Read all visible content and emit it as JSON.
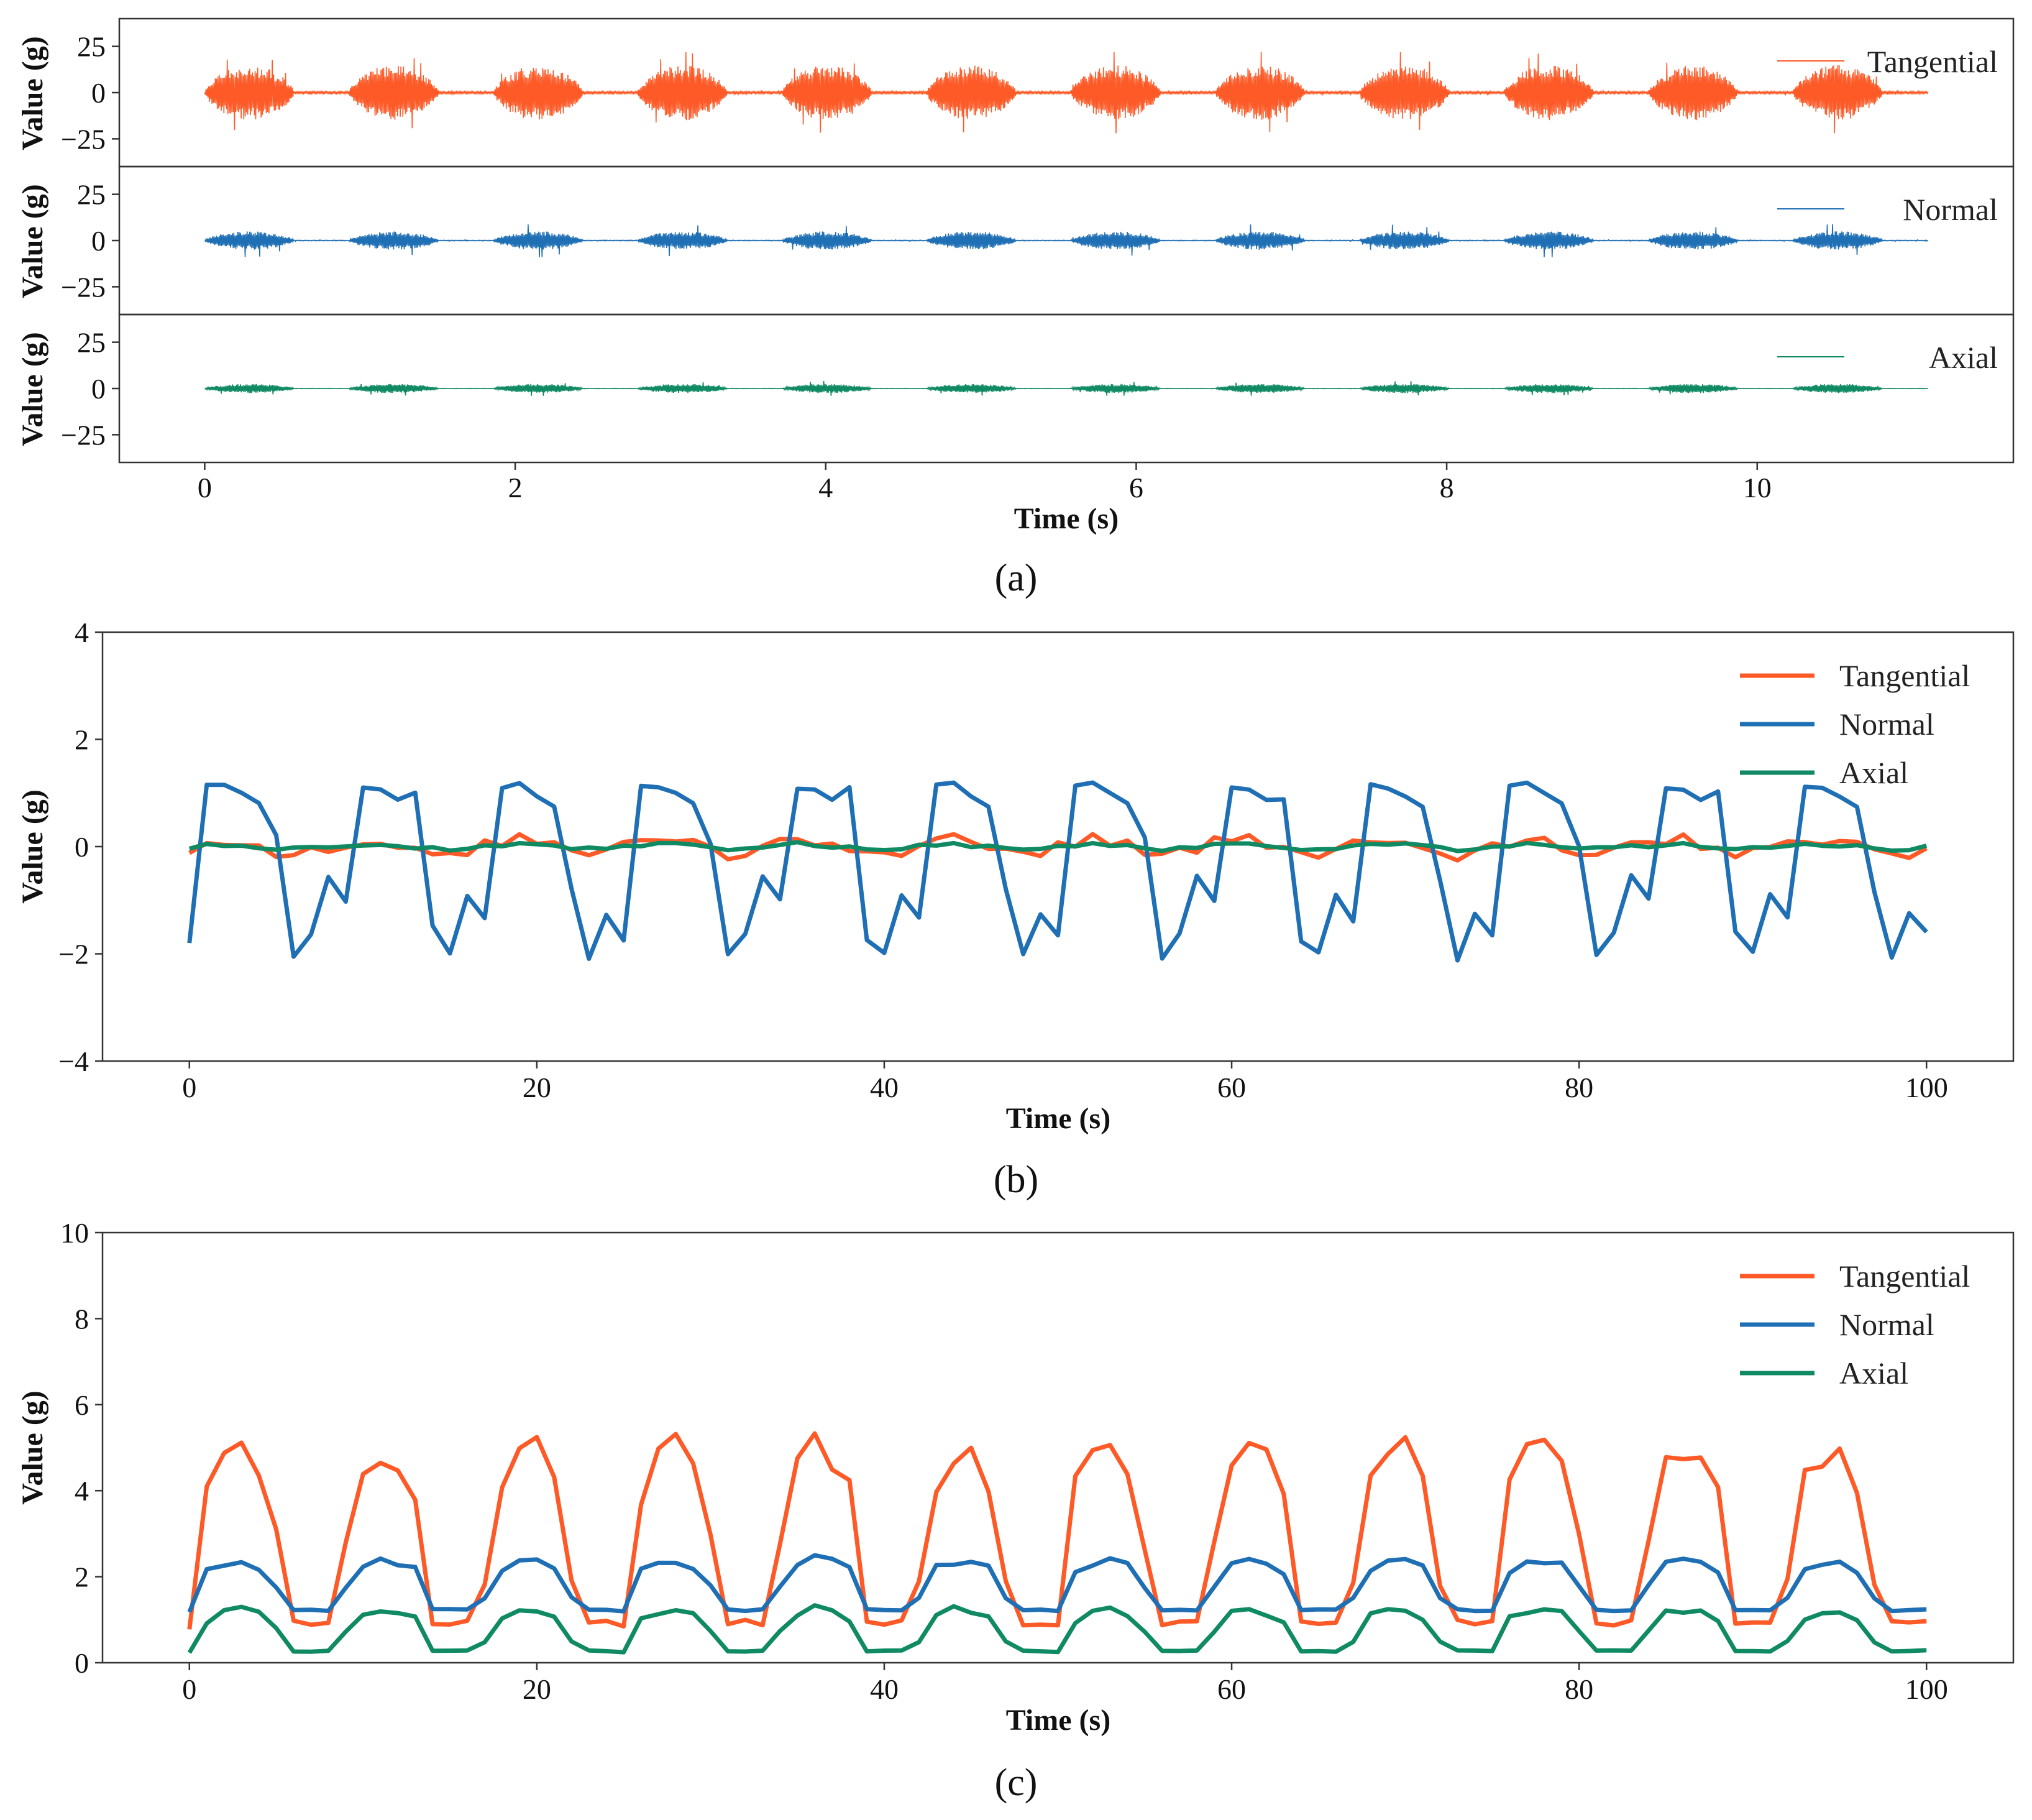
{
  "figure": {
    "panel_labels": [
      "(a)",
      "(b)",
      "(c)"
    ]
  },
  "colors": {
    "tangential": "#fd5a27",
    "normal": "#1f6fb5",
    "axial": "#0f8a63",
    "frame": "#333333"
  },
  "chart_data": [
    {
      "id": "a",
      "type": "line",
      "title": "",
      "panel_label": "(a)",
      "xlabel": "Time (s)",
      "xlim": [
        -0.55,
        11.65
      ],
      "xticks": [
        0,
        2,
        4,
        6,
        8,
        10
      ],
      "subplots": [
        {
          "ylabel": "Value (g)",
          "ylim": [
            -40,
            40
          ],
          "yticks": [
            -25,
            0,
            25
          ],
          "legend": "Tangential",
          "color_key": "tangential",
          "envelope_amp": 15,
          "peak_amp": 22
        },
        {
          "ylabel": "Value (g)",
          "ylim": [
            -40,
            40
          ],
          "yticks": [
            -25,
            0,
            25
          ],
          "legend": "Normal",
          "color_key": "normal",
          "envelope_amp": 5,
          "peak_amp": 9
        },
        {
          "ylabel": "Value (g)",
          "ylim": [
            -40,
            40
          ],
          "yticks": [
            -25,
            0,
            25
          ],
          "legend": "Axial",
          "color_key": "axial",
          "envelope_amp": 2.5,
          "peak_amp": 4
        }
      ],
      "signal": {
        "duration_s": 11.1,
        "burst_period_s": 0.93,
        "burst_duty": 0.62
      }
    },
    {
      "id": "b",
      "type": "line",
      "title": "",
      "panel_label": "(b)",
      "xlabel": "Time (s)",
      "ylabel": "Value (g)",
      "xlim": [
        -5,
        105
      ],
      "ylim": [
        -4,
        4
      ],
      "xticks": [
        0,
        20,
        40,
        60,
        80,
        100
      ],
      "yticks": [
        -4,
        -2,
        0,
        2,
        4
      ],
      "ytick_labels": [
        "−4",
        "−2",
        "0",
        "2",
        "4"
      ],
      "legend_position": "top-right",
      "series": [
        {
          "name": "Tangential",
          "color_key": "tangential",
          "period": 8.33,
          "amplitude": 0.15,
          "noise": 0.12
        },
        {
          "name": "Normal",
          "color_key": "normal",
          "period": 8.33,
          "high": 1.25,
          "low": -2.0
        },
        {
          "name": "Axial",
          "color_key": "axial",
          "period": 8.33,
          "amplitude": 0.05,
          "noise": 0.04
        }
      ]
    },
    {
      "id": "c",
      "type": "line",
      "title": "",
      "panel_label": "(c)",
      "xlabel": "Time (s)",
      "ylabel": "Value (g)",
      "xlim": [
        -5,
        105
      ],
      "ylim": [
        0,
        10
      ],
      "xticks": [
        0,
        20,
        40,
        60,
        80,
        100
      ],
      "yticks": [
        0,
        2,
        4,
        6,
        8,
        10
      ],
      "legend_position": "top-right",
      "series": [
        {
          "name": "Tangential",
          "color_key": "tangential",
          "period": 8.33,
          "high": 5.0,
          "low": 0.85
        },
        {
          "name": "Normal",
          "color_key": "normal",
          "period": 8.33,
          "high": 2.4,
          "low": 1.2
        },
        {
          "name": "Axial",
          "color_key": "axial",
          "period": 8.33,
          "high": 1.25,
          "low": 0.25
        }
      ]
    }
  ]
}
